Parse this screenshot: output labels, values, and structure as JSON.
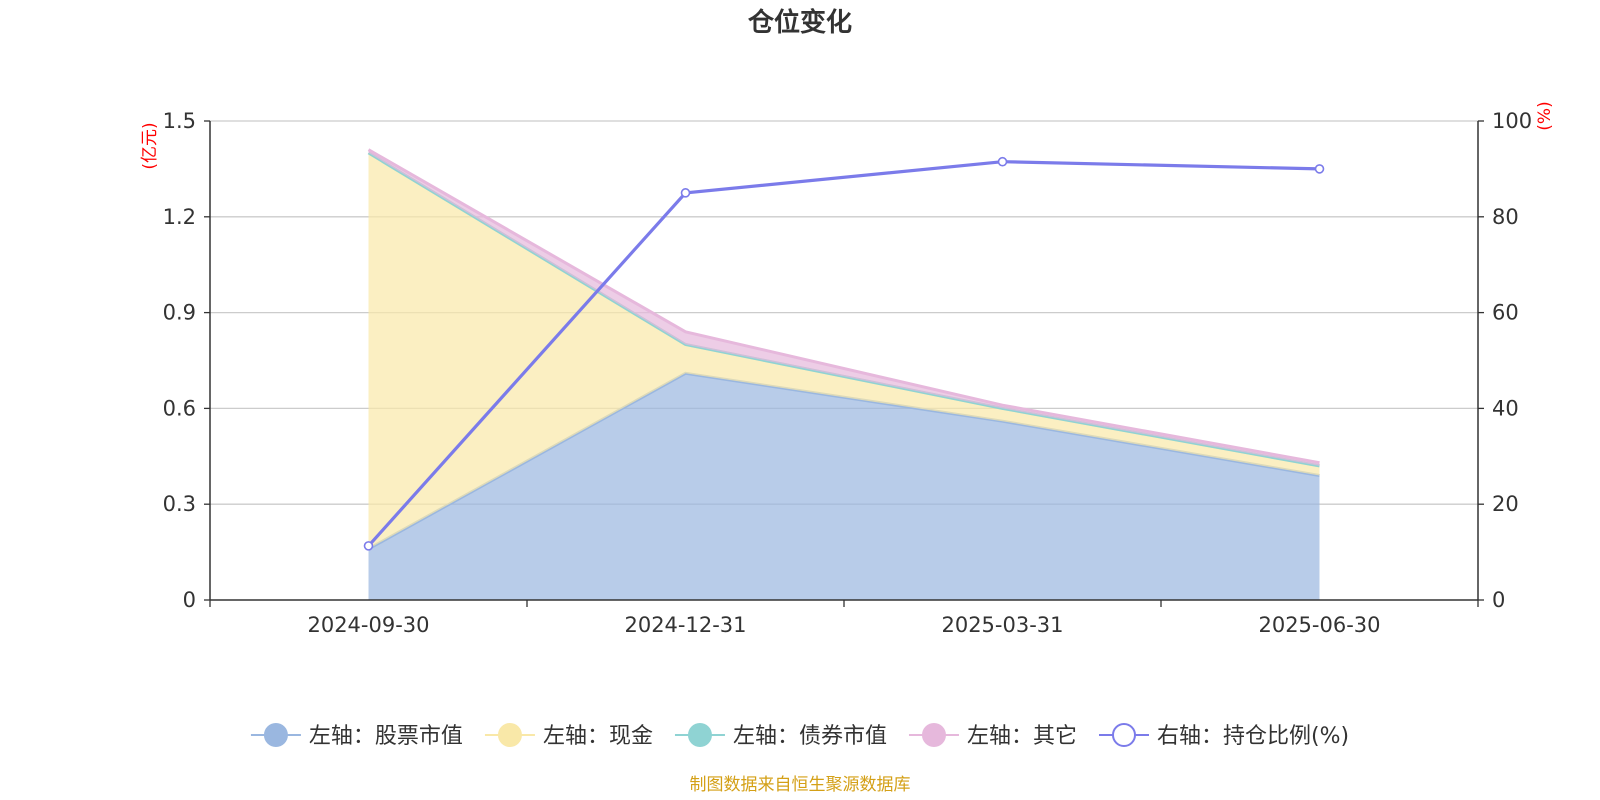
{
  "chart_data": {
    "type": "area",
    "title": "仓位变化",
    "categories": [
      "2024-09-30",
      "2024-12-31",
      "2025-03-31",
      "2025-06-30"
    ],
    "left_axis": {
      "unit": "(亿元)",
      "ylim": [
        0,
        1.5
      ],
      "ticks": [
        "0",
        "0.3",
        "0.6",
        "0.9",
        "1.2",
        "1.5"
      ]
    },
    "right_axis": {
      "unit": "(%)",
      "ylim": [
        0,
        100
      ],
      "ticks": [
        "0",
        "20",
        "40",
        "60",
        "80",
        "100"
      ]
    },
    "stacked_series": [
      {
        "name": "左轴：股票市值",
        "axis": "left",
        "values": [
          0.16,
          0.71,
          0.56,
          0.39
        ],
        "color": "#9ab7e0"
      },
      {
        "name": "左轴：现金",
        "axis": "left",
        "values": [
          1.24,
          0.09,
          0.04,
          0.03
        ],
        "color": "#f9e8a8"
      },
      {
        "name": "左轴：债券市值",
        "axis": "left",
        "values": [
          0,
          0,
          0,
          0
        ],
        "color": "#8fd3d3"
      },
      {
        "name": "左轴：其它",
        "axis": "left",
        "values": [
          0.01,
          0.04,
          0.01,
          0.01
        ],
        "color": "#e6b8dc"
      }
    ],
    "line_series": [
      {
        "name": "右轴：持仓比例(%)",
        "axis": "right",
        "values": [
          11.3,
          85.0,
          91.5,
          90.0
        ],
        "color": "#7b7bea"
      }
    ],
    "grid": true,
    "legend_position": "bottom"
  },
  "source_note": "制图数据来自恒生聚源数据库"
}
